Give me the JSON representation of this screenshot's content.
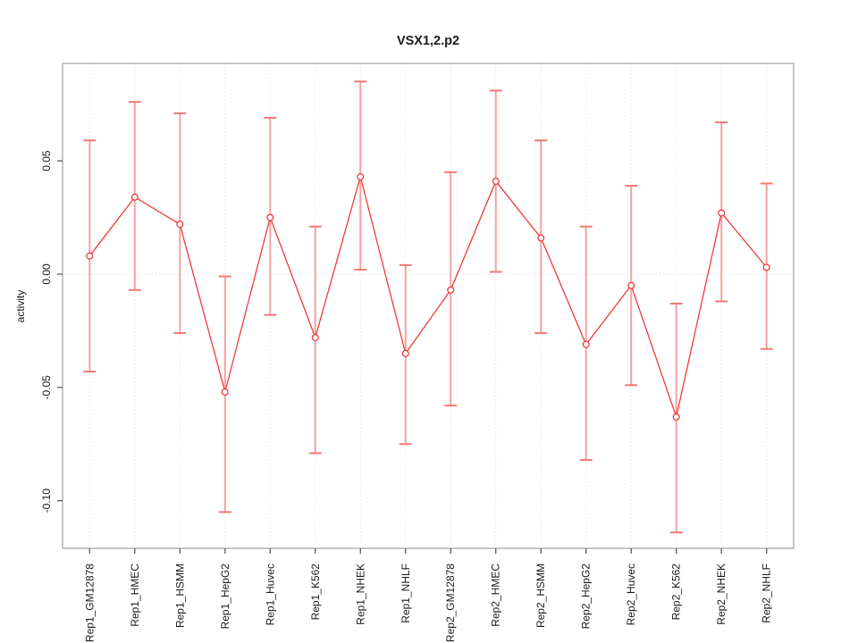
{
  "chart_data": {
    "type": "line",
    "title": "VSX1,2.p2",
    "xlabel": "",
    "ylabel": "activity",
    "categories": [
      "Rep1_GM12878",
      "Rep1_HMEC",
      "Rep1_HSMM",
      "Rep1_HepG2",
      "Rep1_Huvec",
      "Rep1_K562",
      "Rep1_NHEK",
      "Rep1_NHLF",
      "Rep2_GM12878",
      "Rep2_HMEC",
      "Rep2_HSMM",
      "Rep2_HepG2",
      "Rep2_Huvec",
      "Rep2_K562",
      "Rep2_NHEK",
      "Rep2_NHLF"
    ],
    "series": [
      {
        "name": "activity",
        "marker": "open-circle",
        "values": [
          0.008,
          0.034,
          0.022,
          -0.052,
          0.025,
          -0.028,
          0.043,
          -0.035,
          -0.007,
          0.041,
          0.016,
          -0.031,
          -0.005,
          -0.063,
          0.027,
          0.003
        ],
        "error_upper": [
          0.059,
          0.076,
          0.071,
          -0.001,
          0.069,
          0.021,
          0.085,
          0.004,
          0.045,
          0.081,
          0.059,
          0.021,
          0.039,
          -0.013,
          0.067,
          0.04
        ],
        "error_lower": [
          -0.043,
          -0.007,
          -0.026,
          -0.105,
          -0.018,
          -0.079,
          0.002,
          -0.075,
          -0.058,
          0.001,
          -0.026,
          -0.082,
          -0.049,
          -0.114,
          -0.012,
          -0.033
        ]
      }
    ],
    "ylim": [
      -0.121,
      0.093
    ],
    "yticks": [
      0.05,
      0.0,
      -0.05,
      -0.1
    ],
    "ytick_labels": [
      "0.05",
      "0.00",
      "-0.05",
      "-0.10"
    ],
    "grid": {
      "vertical_per_category": "dotted",
      "horizontal_zero_line": "dotted"
    },
    "legend": "none",
    "colors": {
      "line": "#ee3b3b",
      "marker_stroke": "#ee3b3b",
      "marker_fill": "#ffffff",
      "error_bar": "#f5a2a0",
      "error_cap": "#f07876",
      "grid": "#dcdcdc",
      "zero_line": "#d9d9d9",
      "box": "#8c8c8c",
      "tick": "#4d4d4d",
      "text": "#1a1a1a"
    }
  }
}
